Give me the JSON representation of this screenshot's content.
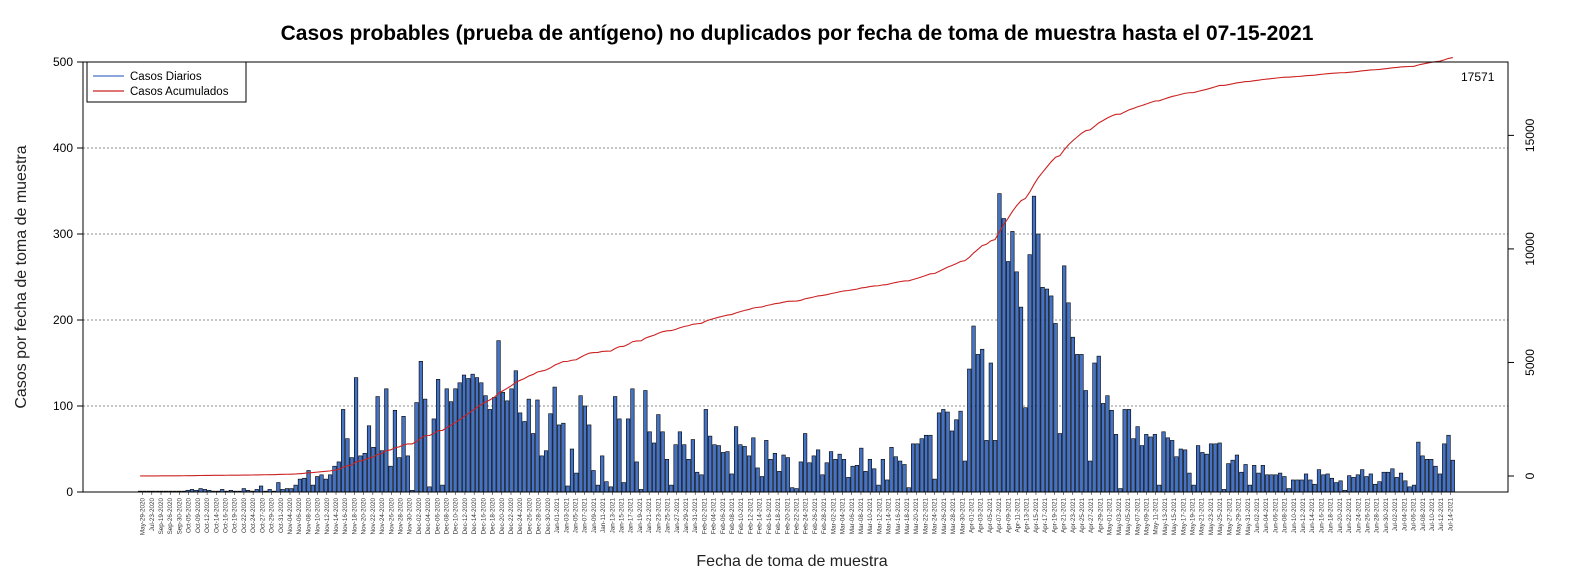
{
  "chart_data": {
    "type": "bar",
    "title": "Casos probables (prueba de antígeno) no duplicados por fecha de toma de muestra hasta el 07-15-2021",
    "xlabel": "Fecha de toma de muestra",
    "ylabel": "Casos por fecha de toma de muestra",
    "ylim": [
      0,
      500
    ],
    "yticks": [
      0,
      100,
      200,
      300,
      400,
      500
    ],
    "y2lim": [
      0,
      17571
    ],
    "y2ticks": [
      0,
      5000,
      10000,
      15000
    ],
    "grid": "horizontal-dotted",
    "legend_position": "top-left",
    "end_label": "17571",
    "start_date": "2020-05-29",
    "date_labels": [
      "May-29-2020",
      "Jul-23-2020",
      "Sep-19-2020",
      "Sep-26-2020",
      "Sep-30-2020",
      "Oct-05-2020",
      "Oct-09-2020",
      "Oct-12-2020",
      "Oct-14-2020",
      "Oct-16-2020",
      "Oct-19-2020",
      "Oct-22-2020",
      "Oct-24-2020",
      "Oct-27-2020",
      "Oct-29-2020",
      "Oct-31-2020",
      "Nov-04-2020",
      "Nov-06-2020",
      "Nov-08-2020",
      "Nov-10-2020",
      "Nov-12-2020",
      "Nov-14-2020",
      "Nov-16-2020",
      "Nov-18-2020",
      "Nov-20-2020",
      "Nov-22-2020",
      "Nov-24-2020",
      "Nov-26-2020",
      "Nov-28-2020",
      "Nov-30-2020",
      "Dec-02-2020",
      "Dec-04-2020",
      "Dec-06-2020",
      "Dec-08-2020",
      "Dec-10-2020",
      "Dec-12-2020",
      "Dec-14-2020",
      "Dec-16-2020",
      "Dec-18-2020",
      "Dec-20-2020",
      "Dec-22-2020",
      "Dec-24-2020",
      "Dec-26-2020",
      "Dec-28-2020",
      "Dec-30-2020",
      "Jan-01-2021",
      "Jan-03-2021",
      "Jan-05-2021",
      "Jan-07-2021",
      "Jan-09-2021",
      "Jan-11-2021",
      "Jan-13-2021",
      "Jan-15-2021",
      "Jan-17-2021",
      "Jan-19-2021",
      "Jan-21-2021",
      "Jan-23-2021",
      "Jan-25-2021",
      "Jan-27-2021",
      "Jan-29-2021",
      "Jan-31-2021",
      "Feb-02-2021",
      "Feb-04-2021",
      "Feb-06-2021",
      "Feb-08-2021",
      "Feb-10-2021",
      "Feb-12-2021",
      "Feb-14-2021",
      "Feb-16-2021",
      "Feb-18-2021",
      "Feb-20-2021",
      "Feb-22-2021",
      "Feb-24-2021",
      "Feb-26-2021",
      "Feb-28-2021",
      "Mar-02-2021",
      "Mar-04-2021",
      "Mar-06-2021",
      "Mar-08-2021",
      "Mar-10-2021",
      "Mar-12-2021",
      "Mar-14-2021",
      "Mar-16-2021",
      "Mar-18-2021",
      "Mar-20-2021",
      "Mar-22-2021",
      "Mar-24-2021",
      "Mar-26-2021",
      "Mar-28-2021",
      "Mar-30-2021",
      "Apr-01-2021",
      "Apr-03-2021",
      "Apr-05-2021",
      "Apr-07-2021",
      "Apr-09-2021",
      "Apr-11-2021",
      "Apr-13-2021",
      "Apr-15-2021",
      "Apr-17-2021",
      "Apr-19-2021",
      "Apr-21-2021",
      "Apr-23-2021",
      "Apr-25-2021",
      "Apr-27-2021",
      "Apr-29-2021",
      "May-01-2021",
      "May-03-2021",
      "May-05-2021",
      "May-07-2021",
      "May-09-2021",
      "May-11-2021",
      "May-13-2021",
      "May-15-2021",
      "May-17-2021",
      "May-19-2021",
      "May-21-2021",
      "May-23-2021",
      "May-25-2021",
      "May-27-2021",
      "May-29-2021",
      "May-31-2021",
      "Jun-02-2021",
      "Jun-04-2021",
      "Jun-06-2021",
      "Jun-08-2021",
      "Jun-10-2021",
      "Jun-12-2021",
      "Jun-14-2021",
      "Jun-16-2021",
      "Jun-18-2021",
      "Jun-20-2021",
      "Jun-22-2021",
      "Jun-24-2021",
      "Jun-26-2021",
      "Jun-28-2021",
      "Jun-30-2021",
      "Jul-02-2021",
      "Jul-04-2021",
      "Jul-06-2021",
      "Jul-08-2021",
      "Jul-10-2021",
      "Jul-12-2021",
      "Jul-14-2021"
    ],
    "series": [
      {
        "name": "Casos Diarios",
        "type": "bar",
        "color": "#4472C4",
        "values": [
          1,
          1,
          1,
          1,
          1,
          1,
          1,
          1,
          1,
          1,
          1,
          2,
          3,
          2,
          4,
          3,
          2,
          1,
          1,
          3,
          1,
          2,
          1,
          1,
          4,
          2,
          1,
          3,
          7,
          1,
          3,
          1,
          11,
          3,
          4,
          4,
          8,
          15,
          16,
          25,
          8,
          18,
          20,
          15,
          20,
          30,
          35,
          96,
          62,
          40,
          133,
          42,
          45,
          77,
          52,
          111,
          48,
          120,
          30,
          95,
          40,
          88,
          42,
          2,
          104,
          152,
          108,
          6,
          85,
          131,
          8,
          120,
          105,
          120,
          127,
          136,
          132,
          137,
          133,
          127,
          112,
          96,
          110,
          176,
          116,
          106,
          120,
          141,
          92,
          82,
          108,
          68,
          107,
          42,
          48,
          91,
          122,
          78,
          80,
          7,
          50,
          22,
          112,
          100,
          78,
          25,
          8,
          42,
          12,
          6,
          111,
          85,
          11,
          85,
          120,
          35,
          3,
          118,
          70,
          57,
          90,
          70,
          38,
          8,
          55,
          70,
          55,
          38,
          61,
          23,
          20,
          96,
          65,
          55,
          54,
          46,
          47,
          21,
          76,
          55,
          53,
          42,
          63,
          28,
          18,
          60,
          38,
          45,
          24,
          43,
          40,
          5,
          4,
          35,
          68,
          34,
          42,
          49,
          20,
          34,
          47,
          38,
          44,
          38,
          17,
          30,
          31,
          51,
          24,
          38,
          27,
          8,
          38,
          14,
          52,
          41,
          36,
          32,
          5,
          56,
          56,
          62,
          66,
          66,
          15,
          92,
          96,
          93,
          71,
          84,
          94,
          36,
          143,
          193,
          160,
          166,
          60,
          150,
          60,
          347,
          318,
          268,
          303,
          256,
          215,
          98,
          276,
          344,
          300,
          238,
          236,
          228,
          196,
          68,
          263,
          220,
          180,
          160,
          160,
          118,
          36,
          150,
          158,
          103,
          112,
          95,
          67,
          4,
          96,
          96,
          62,
          76,
          54,
          67,
          64,
          67,
          8,
          70,
          63,
          60,
          41,
          50,
          49,
          22,
          8,
          54,
          46,
          44,
          56,
          56,
          57,
          3,
          33,
          37,
          43,
          23,
          32,
          8,
          31,
          22,
          31,
          20,
          20,
          20,
          22,
          18,
          4,
          14,
          14,
          14,
          21,
          14,
          9,
          26,
          20,
          21,
          16,
          11,
          13,
          2,
          19,
          17,
          20,
          26,
          18,
          21,
          9,
          12,
          23,
          23,
          27,
          17,
          22,
          13,
          6,
          8,
          58,
          42,
          38,
          38,
          30,
          21,
          56,
          66,
          37
        ]
      },
      {
        "name": "Casos Acumulados",
        "type": "line",
        "color": "#CC2222",
        "axis": "right"
      }
    ]
  }
}
